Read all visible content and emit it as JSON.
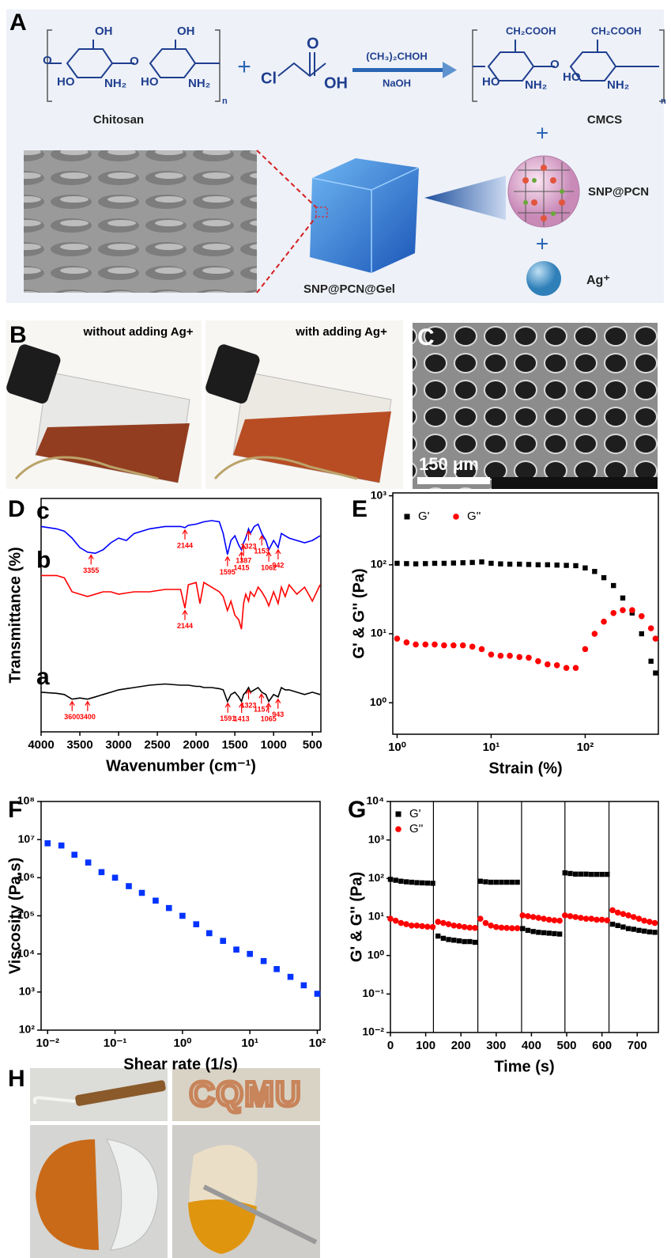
{
  "panel_labels": [
    "A",
    "B",
    "C",
    "D",
    "E",
    "F",
    "G",
    "H"
  ],
  "scheme": {
    "chitosan": "Chitosan",
    "cmcs": "CMCS",
    "reagent": "(CH₃)₂CHOH",
    "base": "NaOH",
    "nanoparticle": "SNP@PCN",
    "ion": "Ag⁺",
    "gel": "SNP@PCN@Gel",
    "plus": "+",
    "chloroacetic_groups": [
      "Cl",
      "O",
      "OH"
    ],
    "chitosan_groups": [
      "OH",
      "HO",
      "NH₂",
      "OH",
      "HO",
      "NH₂",
      "n"
    ],
    "cmcs_groups": [
      "CH₂COOH",
      "CH₂COOH",
      "HO",
      "NH₂",
      "HO",
      "NH₂",
      "n"
    ]
  },
  "photos_b": [
    "without adding Ag+",
    "with adding Ag+"
  ],
  "scale_bar": "150 μm",
  "photo_h_text": "CQMU",
  "chart_data": [
    {
      "type": "line",
      "xlabel": "Wavenumber (cm⁻¹)",
      "ylabel": "Transmittance (%)",
      "xlim": [
        4000,
        390
      ],
      "ylim": [
        0,
        10
      ],
      "xticks": [
        4000,
        3500,
        3000,
        2500,
        2000,
        1500,
        1000,
        500
      ],
      "annotation_color": "#ff0000",
      "x": [
        4000,
        3800,
        3700,
        3600,
        3500,
        3400,
        3300,
        3200,
        3100,
        3000,
        2900,
        2800,
        2600,
        2400,
        2200,
        2144,
        2100,
        2000,
        1950,
        1900,
        1800,
        1700,
        1650,
        1595,
        1550,
        1500,
        1450,
        1415,
        1387,
        1360,
        1323,
        1300,
        1250,
        1200,
        1153,
        1100,
        1062,
        1000,
        942,
        900,
        850,
        800,
        700,
        600,
        500,
        400
      ],
      "series": [
        {
          "name": "c",
          "color": "#0000ff",
          "peaks": [
            3355,
            2144,
            1595,
            1415,
            1323,
            1387,
            1153,
            1062,
            942
          ],
          "values": [
            8.8,
            8.7,
            8.6,
            8.3,
            7.9,
            7.7,
            7.65,
            7.8,
            8.1,
            8.3,
            8.2,
            8.5,
            8.7,
            8.8,
            8.8,
            8.75,
            8.85,
            8.9,
            8.95,
            9.0,
            9.05,
            9.0,
            8.5,
            7.6,
            8.2,
            8.4,
            8.0,
            7.8,
            8.1,
            8.3,
            8.7,
            8.5,
            8.8,
            8.9,
            8.5,
            8.2,
            7.8,
            8.2,
            7.9,
            8.5,
            8.4,
            8.3,
            8.2,
            8.1,
            8.2,
            8.4
          ]
        },
        {
          "name": "b",
          "color": "#ff0000",
          "peaks": [
            2144
          ],
          "values": [
            6.7,
            6.7,
            6.6,
            6.0,
            5.9,
            5.8,
            5.9,
            6.0,
            6.0,
            5.9,
            5.95,
            6.0,
            6.0,
            6.1,
            6.1,
            5.3,
            6.3,
            6.4,
            5.5,
            6.4,
            6.2,
            6.0,
            5.8,
            5.2,
            5.6,
            5.0,
            4.8,
            4.4,
            5.5,
            5.9,
            5.6,
            6.0,
            5.8,
            6.2,
            6.0,
            5.7,
            5.4,
            6.0,
            5.5,
            6.2,
            5.8,
            6.3,
            5.9,
            6.2,
            5.6,
            6.3
          ]
        },
        {
          "name": "a",
          "color": "#000000",
          "peaks": [
            3600,
            3400,
            1591,
            1413,
            1323,
            1157,
            1065,
            943
          ],
          "values": [
            1.7,
            1.65,
            1.6,
            1.4,
            1.45,
            1.4,
            1.5,
            1.6,
            1.7,
            1.8,
            1.85,
            1.9,
            2.0,
            2.05,
            2.0,
            2.0,
            2.0,
            1.95,
            1.95,
            1.9,
            1.9,
            1.85,
            1.8,
            1.3,
            1.6,
            1.7,
            1.5,
            1.3,
            1.6,
            1.7,
            1.9,
            1.7,
            1.8,
            1.9,
            1.7,
            1.6,
            1.3,
            1.6,
            1.5,
            1.9,
            1.8,
            1.8,
            1.7,
            1.6,
            1.7,
            1.6
          ]
        }
      ]
    },
    {
      "type": "scatter",
      "xlabel": "Strain (%)",
      "ylabel": "G' & G'' (Pa)",
      "xlog": true,
      "ylog": true,
      "legend": "top-left",
      "xlim": [
        0.9,
        600
      ],
      "ylim": [
        0.35,
        1100
      ],
      "xticks": [
        {
          "value": 1,
          "label": "10⁰"
        },
        {
          "value": 10,
          "label": "10¹"
        },
        {
          "value": 100,
          "label": "10²"
        }
      ],
      "yticks": [
        {
          "value": 1,
          "label": "10⁰"
        },
        {
          "value": 10,
          "label": "10¹"
        },
        {
          "value": 100,
          "label": "10²"
        },
        {
          "value": 1000,
          "label": "10³"
        }
      ],
      "x": [
        1,
        1.26,
        1.58,
        2,
        2.51,
        3.16,
        3.98,
        5.01,
        6.31,
        7.94,
        10,
        12.6,
        15.8,
        20,
        25.1,
        31.6,
        39.8,
        50.1,
        63.1,
        79.4,
        100,
        126,
        158,
        200,
        251,
        316,
        398,
        501,
        560
      ],
      "series": [
        {
          "name": "G'",
          "color": "#000000",
          "marker": "square",
          "values": [
            105,
            104,
            103,
            104,
            105,
            105,
            106,
            107,
            108,
            110,
            105,
            103,
            102,
            102,
            101,
            100,
            100,
            99,
            98,
            97,
            90,
            80,
            65,
            50,
            33,
            20,
            10,
            4,
            2.7
          ]
        },
        {
          "name": "G''",
          "color": "#ff0000",
          "marker": "circle",
          "values": [
            8.5,
            7.5,
            7,
            7,
            7,
            6.8,
            6.8,
            6.8,
            6.5,
            6,
            5,
            4.8,
            4.8,
            4.6,
            4.5,
            4,
            3.6,
            3.5,
            3.2,
            3.2,
            6,
            10,
            15,
            20,
            22,
            22,
            18,
            12,
            8.5
          ]
        }
      ]
    },
    {
      "type": "scatter",
      "xlabel": "Shear rate (1/s)",
      "ylabel": "Viscosity (Pa.s)",
      "xlog": true,
      "ylog": true,
      "xlim": [
        0.008,
        110
      ],
      "ylim": [
        100,
        100000000
      ],
      "xticks": [
        {
          "value": 0.01,
          "label": "10⁻²"
        },
        {
          "value": 0.1,
          "label": "10⁻¹"
        },
        {
          "value": 1,
          "label": "10⁰"
        },
        {
          "value": 10,
          "label": "10¹"
        },
        {
          "value": 100,
          "label": "10²"
        }
      ],
      "yticks": [
        {
          "value": 100,
          "label": "10²"
        },
        {
          "value": 1000,
          "label": "10³"
        },
        {
          "value": 10000,
          "label": "10⁴"
        },
        {
          "value": 100000,
          "label": "10⁵"
        },
        {
          "value": 1000000,
          "label": "10⁶"
        },
        {
          "value": 10000000,
          "label": "10⁷"
        },
        {
          "value": 100000000,
          "label": "10⁸"
        }
      ],
      "x": [
        0.01,
        0.016,
        0.025,
        0.04,
        0.063,
        0.1,
        0.16,
        0.25,
        0.4,
        0.63,
        1,
        1.6,
        2.5,
        4,
        6.3,
        10,
        16,
        25,
        40,
        63,
        100
      ],
      "series": [
        {
          "color": "#0033ff",
          "marker": "square",
          "values": [
            8000000,
            7000000,
            4000000,
            2500000,
            1400000,
            1000000,
            600000,
            400000,
            250000,
            160000,
            100000,
            60000,
            35000,
            22000,
            13000,
            10000,
            6500,
            4000,
            2500,
            1500,
            900
          ]
        }
      ]
    },
    {
      "type": "scatter",
      "xlabel": "Time (s)",
      "ylabel": "G' & G'' (Pa)",
      "ylog": true,
      "legend": "top-left",
      "xlim": [
        0,
        760
      ],
      "ylim": [
        0.01,
        10000
      ],
      "xticks": [
        0,
        100,
        200,
        300,
        400,
        500,
        600,
        700
      ],
      "yticks": [
        {
          "value": 0.01,
          "label": "10⁻²"
        },
        {
          "value": 0.1,
          "label": "10⁻¹"
        },
        {
          "value": 1,
          "label": "10⁰"
        },
        {
          "value": 10,
          "label": "10¹"
        },
        {
          "value": 100,
          "label": "10²"
        },
        {
          "value": 1000,
          "label": "10³"
        },
        {
          "value": 10000,
          "label": "10⁴"
        }
      ],
      "vlines": [
        122,
        248,
        372,
        495,
        620
      ],
      "x": [
        0,
        15,
        30,
        45,
        60,
        75,
        90,
        105,
        120,
        135,
        150,
        165,
        180,
        195,
        210,
        225,
        240,
        255,
        270,
        285,
        300,
        315,
        330,
        345,
        360,
        375,
        390,
        405,
        420,
        435,
        450,
        465,
        480,
        495,
        510,
        525,
        540,
        555,
        570,
        585,
        600,
        615,
        630,
        645,
        660,
        675,
        690,
        705,
        720,
        735,
        750
      ],
      "series": [
        {
          "name": "G'",
          "color": "#000000",
          "marker": "square",
          "values": [
            95,
            90,
            85,
            82,
            80,
            78,
            77,
            76,
            75,
            3.2,
            2.8,
            2.6,
            2.5,
            2.4,
            2.3,
            2.3,
            2.2,
            85,
            82,
            80,
            80,
            80,
            80,
            80,
            80,
            5,
            4.5,
            4.2,
            4,
            3.9,
            3.8,
            3.7,
            3.6,
            140,
            135,
            130,
            130,
            130,
            128,
            128,
            128,
            128,
            6.5,
            6,
            5.5,
            5,
            4.8,
            4.5,
            4.3,
            4.1,
            4
          ]
        },
        {
          "name": "G''",
          "color": "#ff0000",
          "marker": "circle",
          "values": [
            9,
            8,
            7,
            6.5,
            6,
            6,
            5.8,
            5.6,
            5.5,
            7.5,
            7,
            6.5,
            6,
            5.8,
            5.5,
            5.3,
            5.2,
            9,
            7,
            6,
            5.5,
            5.3,
            5.2,
            5.1,
            5.1,
            11,
            10.5,
            10,
            9.5,
            9,
            8.5,
            8.2,
            8,
            11,
            10.5,
            10,
            9.5,
            9,
            9,
            8.5,
            8.5,
            8.2,
            15,
            13,
            12,
            11,
            10,
            9,
            8,
            7.5,
            7
          ]
        }
      ]
    }
  ]
}
